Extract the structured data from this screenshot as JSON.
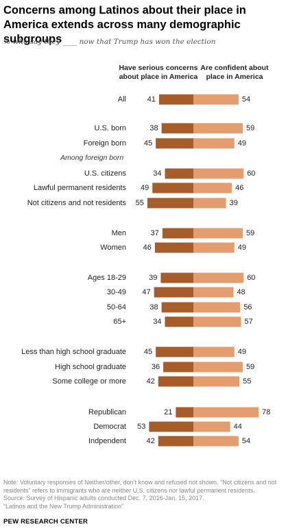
{
  "header": {
    "title": "Concerns among Latinos about their place in America extends across many demographic subgroups",
    "subtitle": "% who say they ____ now that Trump has won the election"
  },
  "colors": {
    "concerns": "#a65d2a",
    "confident": "#e39d6e",
    "label_text": "#222222",
    "subheading_text": "#333333"
  },
  "chart_data": {
    "type": "bar",
    "orientation": "diverging-horizontal",
    "series": [
      {
        "name": "Have serious concerns about place in America",
        "color": "#a65d2a"
      },
      {
        "name": "Are confident about place in America",
        "color": "#e39d6e"
      }
    ],
    "rows": [
      {
        "label": "All",
        "concerns": 41,
        "confident": 54
      },
      {
        "label": "U.S. born",
        "concerns": 38,
        "confident": 59
      },
      {
        "label": "Foreign born",
        "concerns": 45,
        "confident": 49
      },
      {
        "label": "Among foreign born",
        "subheading": true
      },
      {
        "label": "U.S. citizens",
        "concerns": 34,
        "confident": 60
      },
      {
        "label": "Lawful permanent residents",
        "concerns": 49,
        "confident": 46
      },
      {
        "label": "Not citizens and not residents",
        "concerns": 55,
        "confident": 39
      },
      {
        "label": "Men",
        "concerns": 37,
        "confident": 59
      },
      {
        "label": "Women",
        "concerns": 46,
        "confident": 49
      },
      {
        "label": "Ages 18-29",
        "concerns": 39,
        "confident": 60
      },
      {
        "label": "30-49",
        "concerns": 47,
        "confident": 48
      },
      {
        "label": "50-64",
        "concerns": 38,
        "confident": 56
      },
      {
        "label": "65+",
        "concerns": 34,
        "confident": 57
      },
      {
        "label": "Less than high school graduate",
        "concerns": 45,
        "confident": 49
      },
      {
        "label": "High school graduate",
        "concerns": 36,
        "confident": 59
      },
      {
        "label": "Some college or more",
        "concerns": 42,
        "confident": 55
      },
      {
        "label": "Republican",
        "concerns": 21,
        "confident": 78
      },
      {
        "label": "Democrat",
        "concerns": 53,
        "confident": 44
      },
      {
        "label": "Indpendent",
        "concerns": 42,
        "confident": 54
      }
    ]
  },
  "footer": {
    "note": "Note: Voluntary responses of Neither/other, don’t know and refused not shown. “Not citizens and not residents” refers to immigrants who are neither U.S. citizens nor lawful permanent residents.",
    "source": "Source: Survey of Hispanic adults conducted Dec. 7, 2016-Jan. 15, 2017.",
    "report": "“Latinos and the New Trump Administration”",
    "brand": "PEW RESEARCH CENTER"
  }
}
